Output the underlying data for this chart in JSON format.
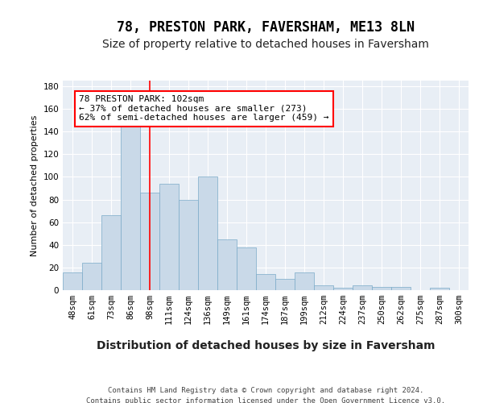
{
  "title": "78, PRESTON PARK, FAVERSHAM, ME13 8LN",
  "subtitle": "Size of property relative to detached houses in Faversham",
  "xlabel": "Distribution of detached houses by size in Faversham",
  "ylabel": "Number of detached properties",
  "bar_labels": [
    "48sqm",
    "61sqm",
    "73sqm",
    "86sqm",
    "98sqm",
    "111sqm",
    "124sqm",
    "136sqm",
    "149sqm",
    "161sqm",
    "174sqm",
    "187sqm",
    "199sqm",
    "212sqm",
    "224sqm",
    "237sqm",
    "250sqm",
    "262sqm",
    "275sqm",
    "287sqm",
    "300sqm"
  ],
  "bar_values": [
    16,
    24,
    66,
    146,
    86,
    94,
    80,
    100,
    45,
    38,
    14,
    10,
    16,
    4,
    2,
    4,
    3,
    3,
    0,
    2,
    0
  ],
  "bar_color": "#c9d9e8",
  "bar_edge_color": "#7aaac8",
  "ylim": [
    0,
    185
  ],
  "yticks": [
    0,
    20,
    40,
    60,
    80,
    100,
    120,
    140,
    160,
    180
  ],
  "vline_index": 4,
  "vline_color": "red",
  "annotation_text": "78 PRESTON PARK: 102sqm\n← 37% of detached houses are smaller (273)\n62% of semi-detached houses are larger (459) →",
  "footer": "Contains HM Land Registry data © Crown copyright and database right 2024.\nContains public sector information licensed under the Open Government Licence v3.0.",
  "bg_color": "#e8eef5",
  "grid_color": "#ffffff",
  "fig_bg_color": "#ffffff",
  "title_fontsize": 12,
  "subtitle_fontsize": 10,
  "xlabel_fontsize": 10,
  "ylabel_fontsize": 8,
  "tick_fontsize": 7.5,
  "annotation_fontsize": 8,
  "footer_fontsize": 6.5
}
